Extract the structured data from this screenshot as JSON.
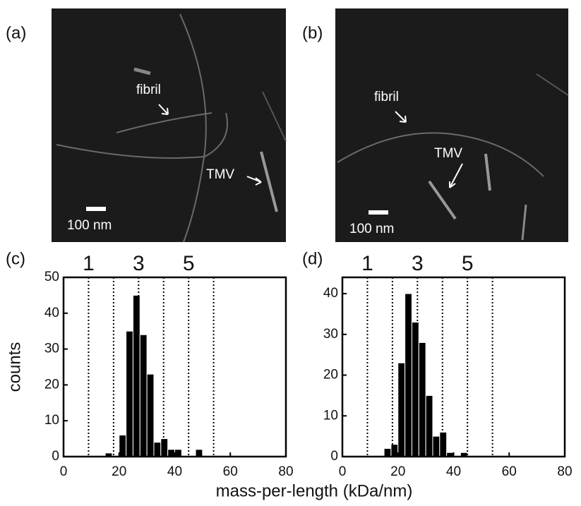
{
  "images": [
    {
      "panel": "(a)",
      "annotations": [
        "fibril",
        "TMV"
      ],
      "scalebar": "100 nm"
    },
    {
      "panel": "(b)",
      "annotations": [
        "fibril",
        "TMV"
      ],
      "scalebar": "100 nm"
    }
  ],
  "chart_data": [
    {
      "type": "histogram",
      "panel": "(c)",
      "ylabel": "counts",
      "xlabel": "mass-per-length (kDa/nm)",
      "bins": [
        15,
        17.5,
        20,
        22.5,
        25,
        27.5,
        30,
        32.5,
        35,
        37.5,
        40,
        42.5,
        45,
        47.5,
        50
      ],
      "counts": [
        1,
        0,
        6,
        35,
        45,
        34,
        23,
        4,
        5,
        2,
        2,
        0,
        0,
        2
      ],
      "color": "#000000",
      "xlim": [
        0,
        80
      ],
      "xticks": [
        0,
        20,
        40,
        60,
        80
      ],
      "ylim": [
        0,
        50
      ],
      "yticks": [
        0,
        10,
        20,
        30,
        40,
        50
      ],
      "reference_lines": [
        9,
        18,
        27,
        36,
        45,
        54
      ],
      "line_labels": [
        {
          "value": 9,
          "label": "1"
        },
        {
          "value": 27,
          "label": "3"
        },
        {
          "value": 45,
          "label": "5"
        }
      ]
    },
    {
      "type": "histogram",
      "panel": "(d)",
      "bins": [
        15,
        17.5,
        20,
        22.5,
        25,
        27.5,
        30,
        32.5,
        35,
        37.5,
        40,
        42.5,
        45
      ],
      "counts": [
        2,
        3,
        23,
        40,
        33,
        28,
        15,
        5,
        6,
        1,
        0,
        1
      ],
      "color": "#000000",
      "xlim": [
        0,
        80
      ],
      "xticks": [
        0,
        20,
        40,
        60,
        80
      ],
      "ylim": [
        0,
        44
      ],
      "yticks": [
        0,
        10,
        20,
        30,
        40
      ],
      "reference_lines": [
        9,
        18,
        27,
        36,
        45,
        54
      ],
      "line_labels": [
        {
          "value": 9,
          "label": "1"
        },
        {
          "value": 27,
          "label": "3"
        },
        {
          "value": 45,
          "label": "5"
        }
      ]
    }
  ]
}
